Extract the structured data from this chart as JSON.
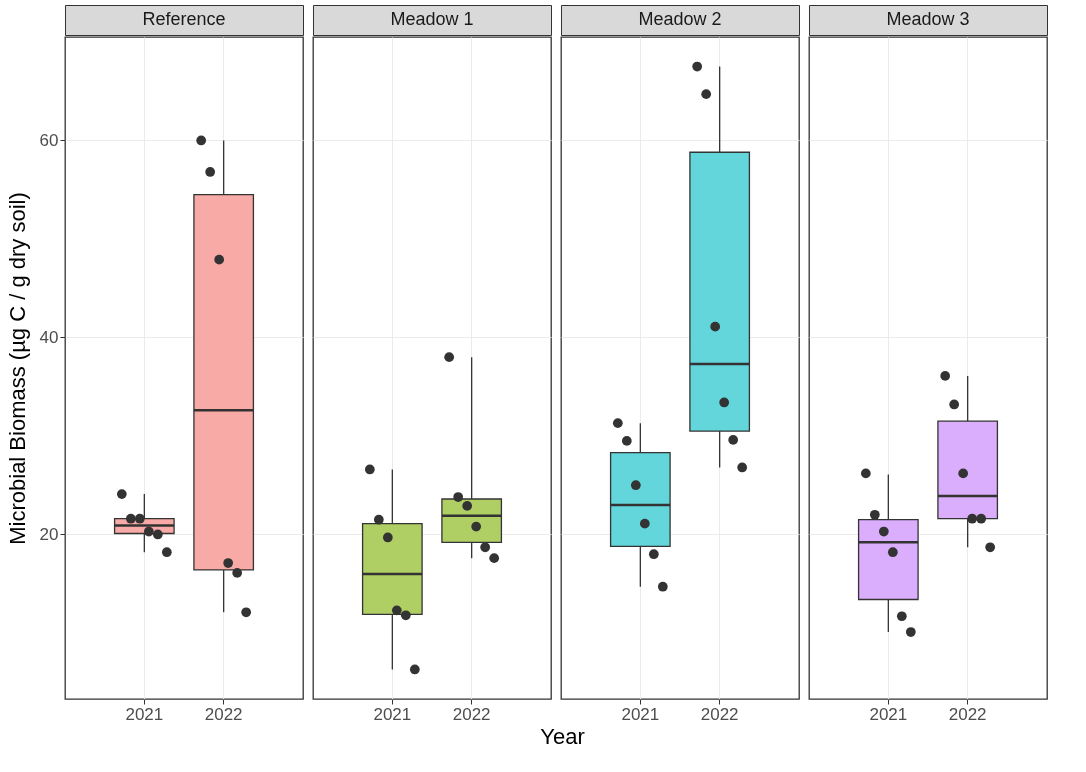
{
  "chart_data": [
    {
      "type": "box",
      "title": "Reference",
      "ylabel": "Microbial Biomass (µg C / g dry soil)",
      "categories": [
        "2021",
        "2022"
      ],
      "ylim": [
        3.3,
        70.5
      ],
      "yticks": [
        20,
        40,
        60
      ],
      "grid": true,
      "series": [
        {
          "type": "box",
          "color": "#f8aba6",
          "boxes": [
            {
              "low": 18.2,
              "q1": 20.1,
              "median": 20.9,
              "q3": 21.6,
              "high": 24.1
            },
            {
              "low": 12.1,
              "q1": 16.4,
              "median": 32.6,
              "q3": 54.5,
              "high": 60.0
            }
          ]
        },
        {
          "type": "scatter",
          "color": "#333333",
          "values": [
            24.1,
            60.0
          ]
        },
        {
          "type": "scatter",
          "color": "#333333",
          "values": [
            21.6,
            56.8
          ]
        },
        {
          "type": "scatter",
          "color": "#333333",
          "values": [
            21.6,
            47.9
          ]
        },
        {
          "type": "scatter",
          "color": "#333333",
          "values": [
            20.3,
            17.1
          ]
        },
        {
          "type": "scatter",
          "color": "#333333",
          "values": [
            20.0,
            16.1
          ]
        },
        {
          "type": "scatter",
          "color": "#333333",
          "values": [
            18.2,
            12.1
          ]
        }
      ]
    },
    {
      "type": "box",
      "title": "Meadow 1",
      "xlabel": "Year",
      "categories": [
        "2021",
        "2022"
      ],
      "ylim": [
        3.3,
        70.5
      ],
      "yticks": [
        20,
        40,
        60
      ],
      "grid": true,
      "tick_labels": "x",
      "series": [
        {
          "type": "box",
          "color": "#afcf64",
          "boxes": [
            {
              "low": 6.3,
              "q1": 11.9,
              "median": 16.0,
              "q3": 21.1,
              "high": 26.6
            },
            {
              "low": 17.6,
              "q1": 19.2,
              "median": 21.9,
              "q3": 23.6,
              "high": 38.0
            }
          ]
        },
        {
          "type": "scatter",
          "color": "#333333",
          "values": [
            26.6,
            38.0
          ]
        },
        {
          "type": "scatter",
          "color": "#333333",
          "values": [
            21.5,
            23.8
          ]
        },
        {
          "type": "scatter",
          "color": "#333333",
          "values": [
            19.7,
            22.9
          ]
        },
        {
          "type": "scatter",
          "color": "#333333",
          "values": [
            12.3,
            20.8
          ]
        },
        {
          "type": "scatter",
          "color": "#333333",
          "values": [
            11.8,
            18.7
          ]
        },
        {
          "type": "scatter",
          "color": "#333333",
          "values": [
            6.3,
            17.6
          ]
        }
      ]
    },
    {
      "type": "box",
      "title": "Meadow 2",
      "categories": [
        "2021",
        "2022"
      ],
      "ylim": [
        3.3,
        70.5
      ],
      "yticks": [
        20,
        40,
        60
      ],
      "grid": true,
      "tick_labels": "x",
      "series": [
        {
          "type": "box",
          "color": "#63d6dc",
          "boxes": [
            {
              "low": 14.7,
              "q1": 18.8,
              "median": 23.0,
              "q3": 28.3,
              "high": 31.3
            },
            {
              "low": 26.8,
              "q1": 30.5,
              "median": 37.3,
              "q3": 58.8,
              "high": 67.5
            }
          ]
        },
        {
          "type": "scatter",
          "color": "#333333",
          "values": [
            31.3,
            67.5
          ]
        },
        {
          "type": "scatter",
          "color": "#333333",
          "values": [
            29.5,
            64.7
          ]
        },
        {
          "type": "scatter",
          "color": "#333333",
          "values": [
            25.0,
            41.1
          ]
        },
        {
          "type": "scatter",
          "color": "#333333",
          "values": [
            21.1,
            33.4
          ]
        },
        {
          "type": "scatter",
          "color": "#333333",
          "values": [
            18.0,
            29.6
          ]
        },
        {
          "type": "scatter",
          "color": "#333333",
          "values": [
            14.7,
            26.8
          ]
        }
      ]
    },
    {
      "type": "box",
      "title": "Meadow 3",
      "categories": [
        "2021",
        "2022"
      ],
      "ylim": [
        3.3,
        70.5
      ],
      "yticks": [
        20,
        40,
        60
      ],
      "grid": true,
      "tick_labels": "x",
      "series": [
        {
          "type": "box",
          "color": "#dbaefd",
          "boxes": [
            {
              "low": 10.1,
              "q1": 13.4,
              "median": 19.2,
              "q3": 21.5,
              "high": 26.1
            },
            {
              "low": 18.7,
              "q1": 21.6,
              "median": 23.9,
              "q3": 31.5,
              "high": 36.1
            }
          ]
        },
        {
          "type": "scatter",
          "color": "#333333",
          "values": [
            26.2,
            36.1
          ]
        },
        {
          "type": "scatter",
          "color": "#333333",
          "values": [
            22.0,
            33.2
          ]
        },
        {
          "type": "scatter",
          "color": "#333333",
          "values": [
            20.3,
            26.2
          ]
        },
        {
          "type": "scatter",
          "color": "#333333",
          "values": [
            18.2,
            21.6
          ]
        },
        {
          "type": "scatter",
          "color": "#333333",
          "values": [
            11.7,
            21.6
          ]
        },
        {
          "type": "scatter",
          "color": "#333333",
          "values": [
            10.1,
            18.7
          ]
        }
      ]
    }
  ]
}
